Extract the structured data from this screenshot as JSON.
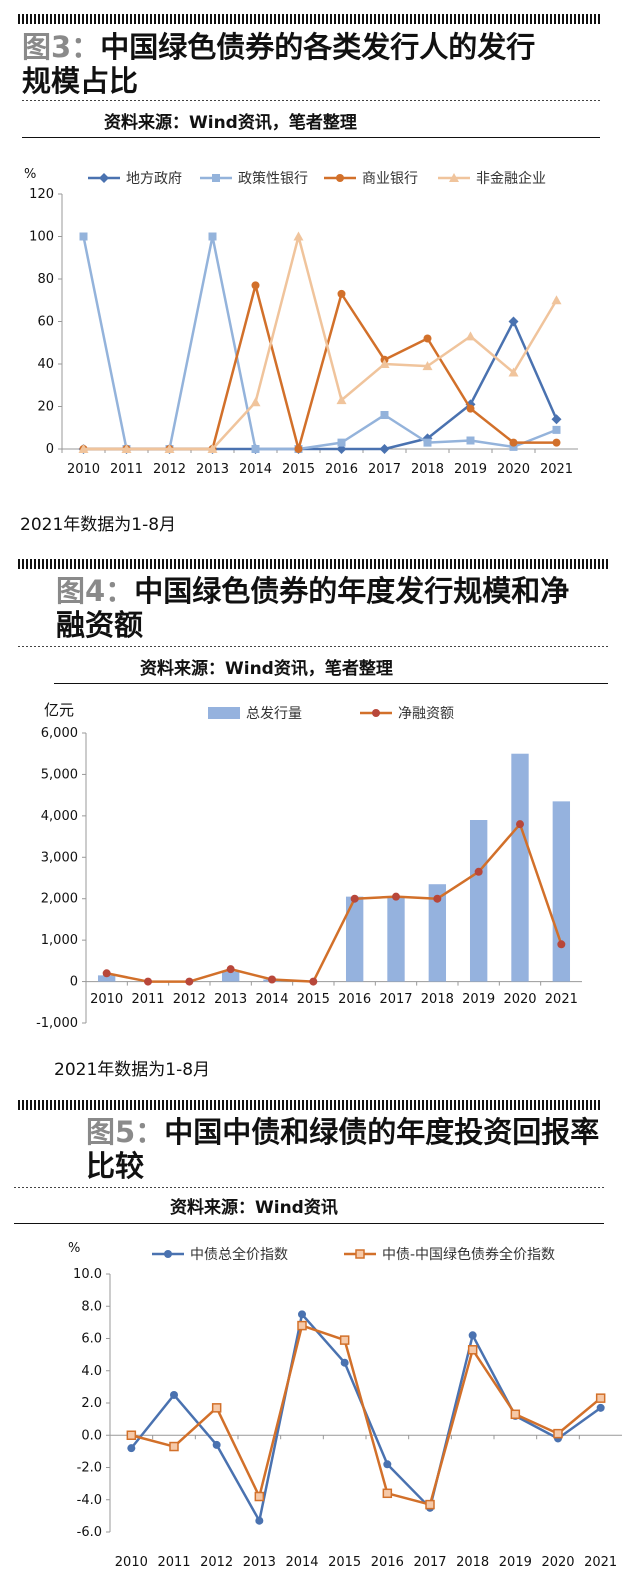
{
  "figures": [
    {
      "title_num": "图3：",
      "title_text": "中国绿色债券的各类发行人的发行规模占比",
      "source": "资料来源：Wind资讯，笔者整理",
      "note": "2021年数据为1-8月"
    },
    {
      "title_num": "图4：",
      "title_text": "中国绿色债券的年度发行规模和净融资额",
      "source": "资料来源：Wind资讯，笔者整理",
      "note": "2021年数据为1-8月"
    },
    {
      "title_num": "图5：",
      "title_text": "中国中债和绿债的年度投资回报率比较",
      "source": "资料来源：Wind资讯",
      "note": ""
    }
  ],
  "chart_data": [
    {
      "type": "line",
      "ylabel": "%",
      "ylim": [
        0,
        120
      ],
      "yticks": [
        0,
        20,
        40,
        60,
        80,
        100,
        120
      ],
      "categories": [
        "2010",
        "2011",
        "2012",
        "2013",
        "2014",
        "2015",
        "2016",
        "2017",
        "2018",
        "2019",
        "2020",
        "2021"
      ],
      "legend_position": "top",
      "series": [
        {
          "name": "地方政府",
          "color": "#4a72b0",
          "marker": "diamond",
          "values": [
            0,
            0,
            0,
            0,
            0,
            0,
            0,
            0,
            5,
            21,
            60,
            14
          ]
        },
        {
          "name": "政策性银行",
          "color": "#94b3db",
          "marker": "square",
          "values": [
            100,
            0,
            0,
            100,
            0,
            0,
            3,
            16,
            3,
            4,
            1,
            9
          ]
        },
        {
          "name": "商业银行",
          "color": "#d2702a",
          "marker": "circle",
          "values": [
            0,
            0,
            0,
            0,
            77,
            0,
            73,
            42,
            52,
            19,
            3,
            3
          ]
        },
        {
          "name": "非金融企业",
          "color": "#f0c49c",
          "marker": "triangle",
          "values": [
            0,
            0,
            0,
            0,
            22,
            100,
            23,
            40,
            39,
            53,
            36,
            70
          ]
        }
      ]
    },
    {
      "type": "bar+line",
      "ylabel": "亿元",
      "ylim": [
        -1000,
        6000
      ],
      "yticks": [
        -1000,
        0,
        1000,
        2000,
        3000,
        4000,
        5000,
        6000
      ],
      "ytick_labels": [
        "-1,000",
        "0",
        "1,000",
        "2,000",
        "3,000",
        "4,000",
        "5,000",
        "6,000"
      ],
      "categories": [
        "2010",
        "2011",
        "2012",
        "2013",
        "2014",
        "2015",
        "2016",
        "2017",
        "2018",
        "2019",
        "2020",
        "2021"
      ],
      "legend_position": "top",
      "series": [
        {
          "name": "总发行量",
          "type": "bar",
          "color": "#95b2de",
          "values": [
            150,
            0,
            0,
            240,
            50,
            0,
            2050,
            2030,
            2350,
            3900,
            5500,
            4350
          ]
        },
        {
          "name": "净融资额",
          "type": "line",
          "color": "#d2702a",
          "marker_color": "#b8473a",
          "values": [
            200,
            0,
            0,
            300,
            50,
            0,
            2000,
            2050,
            2000,
            2650,
            3800,
            900
          ]
        }
      ]
    },
    {
      "type": "line",
      "ylabel": "%",
      "ylim": [
        -6,
        10
      ],
      "yticks": [
        -6,
        -4,
        -2,
        0,
        2,
        4,
        6,
        8,
        10
      ],
      "ytick_labels": [
        "-6.0",
        "-4.0",
        "-2.0",
        "0.0",
        "2.0",
        "4.0",
        "6.0",
        "8.0",
        "10.0"
      ],
      "categories": [
        "2010",
        "2011",
        "2012",
        "2013",
        "2014",
        "2015",
        "2016",
        "2017",
        "2018",
        "2019",
        "2020",
        "2021"
      ],
      "legend_position": "top",
      "series": [
        {
          "name": "中债总全价指数",
          "color": "#4a72b0",
          "marker": "circle",
          "values": [
            -0.8,
            2.5,
            -0.6,
            -5.3,
            7.5,
            4.5,
            -1.8,
            -4.5,
            6.2,
            1.2,
            -0.2,
            1.7
          ]
        },
        {
          "name": "中债-中国绿色债券全价指数",
          "color": "#d2702a",
          "marker": "square-open",
          "values": [
            0.0,
            -0.7,
            1.7,
            -3.8,
            6.8,
            5.9,
            -3.6,
            -4.3,
            5.3,
            1.3,
            0.1,
            2.3
          ]
        }
      ]
    }
  ]
}
